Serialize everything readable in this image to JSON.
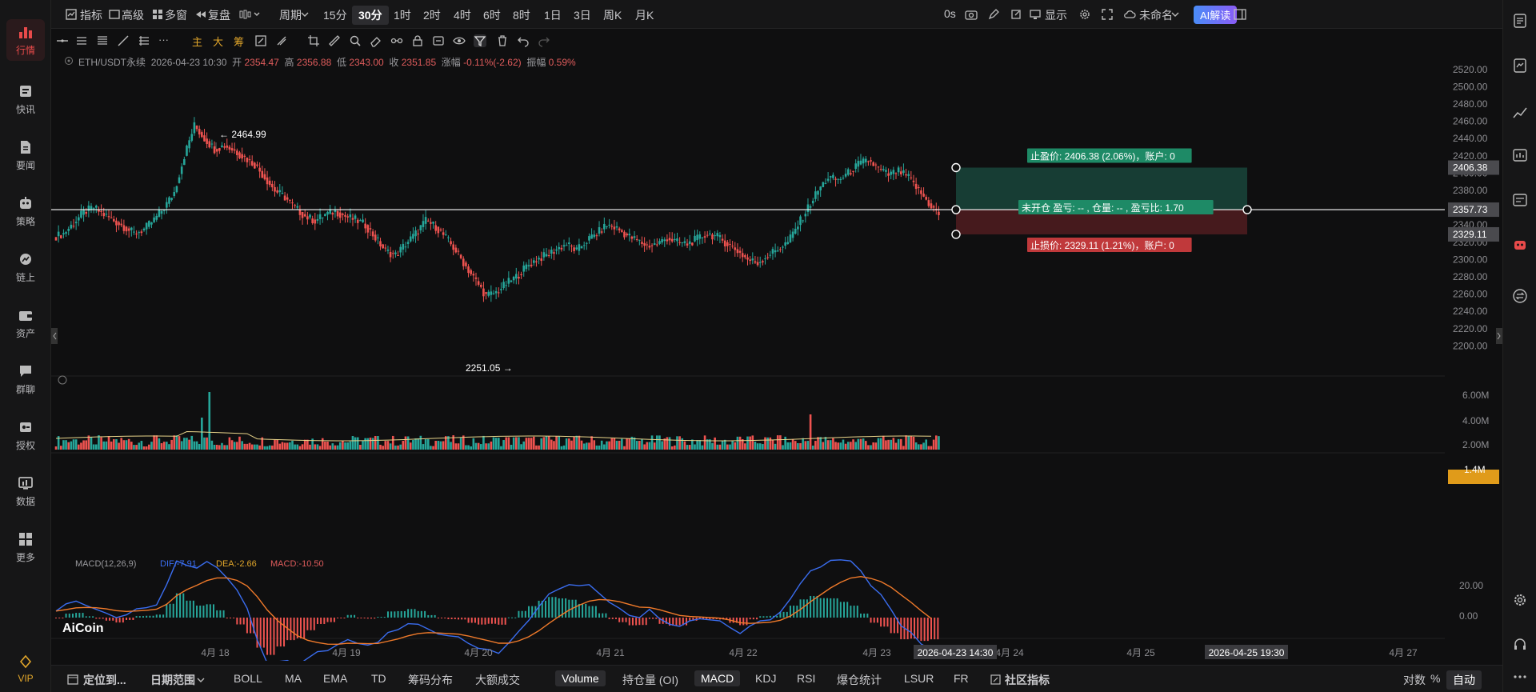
{
  "leftnav": [
    {
      "label": "行情",
      "icon": "chart-bars-icon",
      "active": true
    },
    {
      "label": "快讯",
      "icon": "news-flash-icon"
    },
    {
      "label": "要闻",
      "icon": "document-icon"
    },
    {
      "label": "策略",
      "icon": "robot-icon"
    },
    {
      "label": "链上",
      "icon": "onchain-icon"
    },
    {
      "label": "资产",
      "icon": "wallet-icon"
    },
    {
      "label": "群聊",
      "icon": "chat-icon"
    },
    {
      "label": "授权",
      "icon": "auth-icon"
    },
    {
      "label": "数据",
      "icon": "data-icon"
    },
    {
      "label": "更多",
      "icon": "grid-icon"
    },
    {
      "label": "VIP",
      "icon": "diamond-icon"
    }
  ],
  "topbar": {
    "indicator": "指标",
    "advanced": "高级",
    "multi": "多窗",
    "replay": "复盘",
    "period": "周期",
    "intervals": [
      "15分",
      "30分",
      "1时",
      "2时",
      "4时",
      "6时",
      "8时",
      "1日",
      "3日",
      "周K",
      "月K"
    ],
    "selected_interval": "30分",
    "timer": "0s",
    "display": "显示",
    "unnamed": "未命名",
    "ai": "AI解读"
  },
  "toolrow": {
    "main": "主",
    "big": "大",
    "chip": "筹"
  },
  "ohlc": {
    "symbol": "ETH/USDT永续",
    "time": "2026-04-23 10:30",
    "open_label": "开",
    "open": "2354.47",
    "high_label": "高",
    "high": "2356.88",
    "low_label": "低",
    "low": "2343.00",
    "close_label": "收",
    "close": "2351.85",
    "chg_label": "涨幅",
    "chg": "-0.11%(-2.62)",
    "amp_label": "振幅",
    "amp": "0.59%"
  },
  "chart_data": {
    "type": "candlestick",
    "symbol": "ETH/USDT永续",
    "price_ticks": [
      "2520.00",
      "2500.00",
      "2480.00",
      "2460.00",
      "2440.00",
      "2420.00",
      "2400.00",
      "2380.00",
      "2360.00",
      "2340.00",
      "2320.00",
      "2300.00",
      "2280.00",
      "2260.00",
      "2240.00",
      "2220.00",
      "2200.00"
    ],
    "ylim": [
      2180,
      2530
    ],
    "x_labels": [
      "4月 18",
      "4月 19",
      "4月 20",
      "4月 21",
      "4月 22",
      "4月 23",
      "4月 24",
      "4月 25",
      "4月 27"
    ],
    "high_marker": "← 2464.99",
    "low_marker": "2251.05 →",
    "take_profit_label": "止盈价: 2406.38 (2.06%)，账户: 0",
    "open_position_label": "未开仓 盈亏: -- , 仓量: -- , 盈亏比: 1.70",
    "stop_loss_label": "止损价: 2329.11 (1.21%)，账户: 0",
    "take_profit": "2406.38",
    "entry": "2357.73",
    "stop_loss": "2329.11",
    "close_series": [
      2330,
      2342,
      2355,
      2360,
      2352,
      2345,
      2338,
      2330,
      2335,
      2346,
      2360,
      2378,
      2420,
      2455,
      2440,
      2428,
      2432,
      2426,
      2418,
      2410,
      2395,
      2380,
      2372,
      2360,
      2350,
      2345,
      2352,
      2356,
      2350,
      2346,
      2340,
      2325,
      2310,
      2305,
      2318,
      2330,
      2345,
      2338,
      2325,
      2310,
      2292,
      2275,
      2258,
      2262,
      2272,
      2280,
      2292,
      2300,
      2305,
      2312,
      2318,
      2310,
      2322,
      2330,
      2340,
      2336,
      2328,
      2322,
      2316,
      2318,
      2325,
      2320,
      2318,
      2324,
      2330,
      2326,
      2318,
      2310,
      2300,
      2296,
      2305,
      2312,
      2320,
      2340,
      2360,
      2380,
      2395,
      2392,
      2400,
      2410,
      2415,
      2405,
      2398,
      2402,
      2395,
      2380,
      2365,
      2352
    ],
    "volume_ticks": [
      "6.00M",
      "4.00M",
      "2.00M"
    ],
    "volume_last": "1.4M",
    "macd_ticks": [
      "20.00",
      "0.00"
    ],
    "macd_label": "MACD(12,26,9)",
    "dif": "DIF:-7.91",
    "dea": "DEA:-2.66",
    "macd": "MACD:-10.50",
    "crosshair_time_1": "2026-04-23 14:30",
    "crosshair_time_2": "2026-04-25 19:30",
    "bottom_right_1": "筹",
    "bottom_right_2": "爆",
    "logo": "AiCoin"
  },
  "bottombar": {
    "locate": "定位到...",
    "date_range": "日期范围",
    "indicators": [
      "BOLL",
      "MA",
      "EMA",
      "TD",
      "筹码分布",
      "大额成交"
    ],
    "sub_indicators": [
      "Volume",
      "持仓量 (OI)",
      "MACD",
      "KDJ",
      "RSI",
      "爆仓统计",
      "LSUR",
      "FR"
    ],
    "community": "社区指标",
    "log": "对数",
    "pct": "%",
    "auto": "自动"
  },
  "colors": {
    "up": "#26a69a",
    "down": "#ef5350",
    "accent": "#e84a4a",
    "ai": "#3b82f6"
  }
}
